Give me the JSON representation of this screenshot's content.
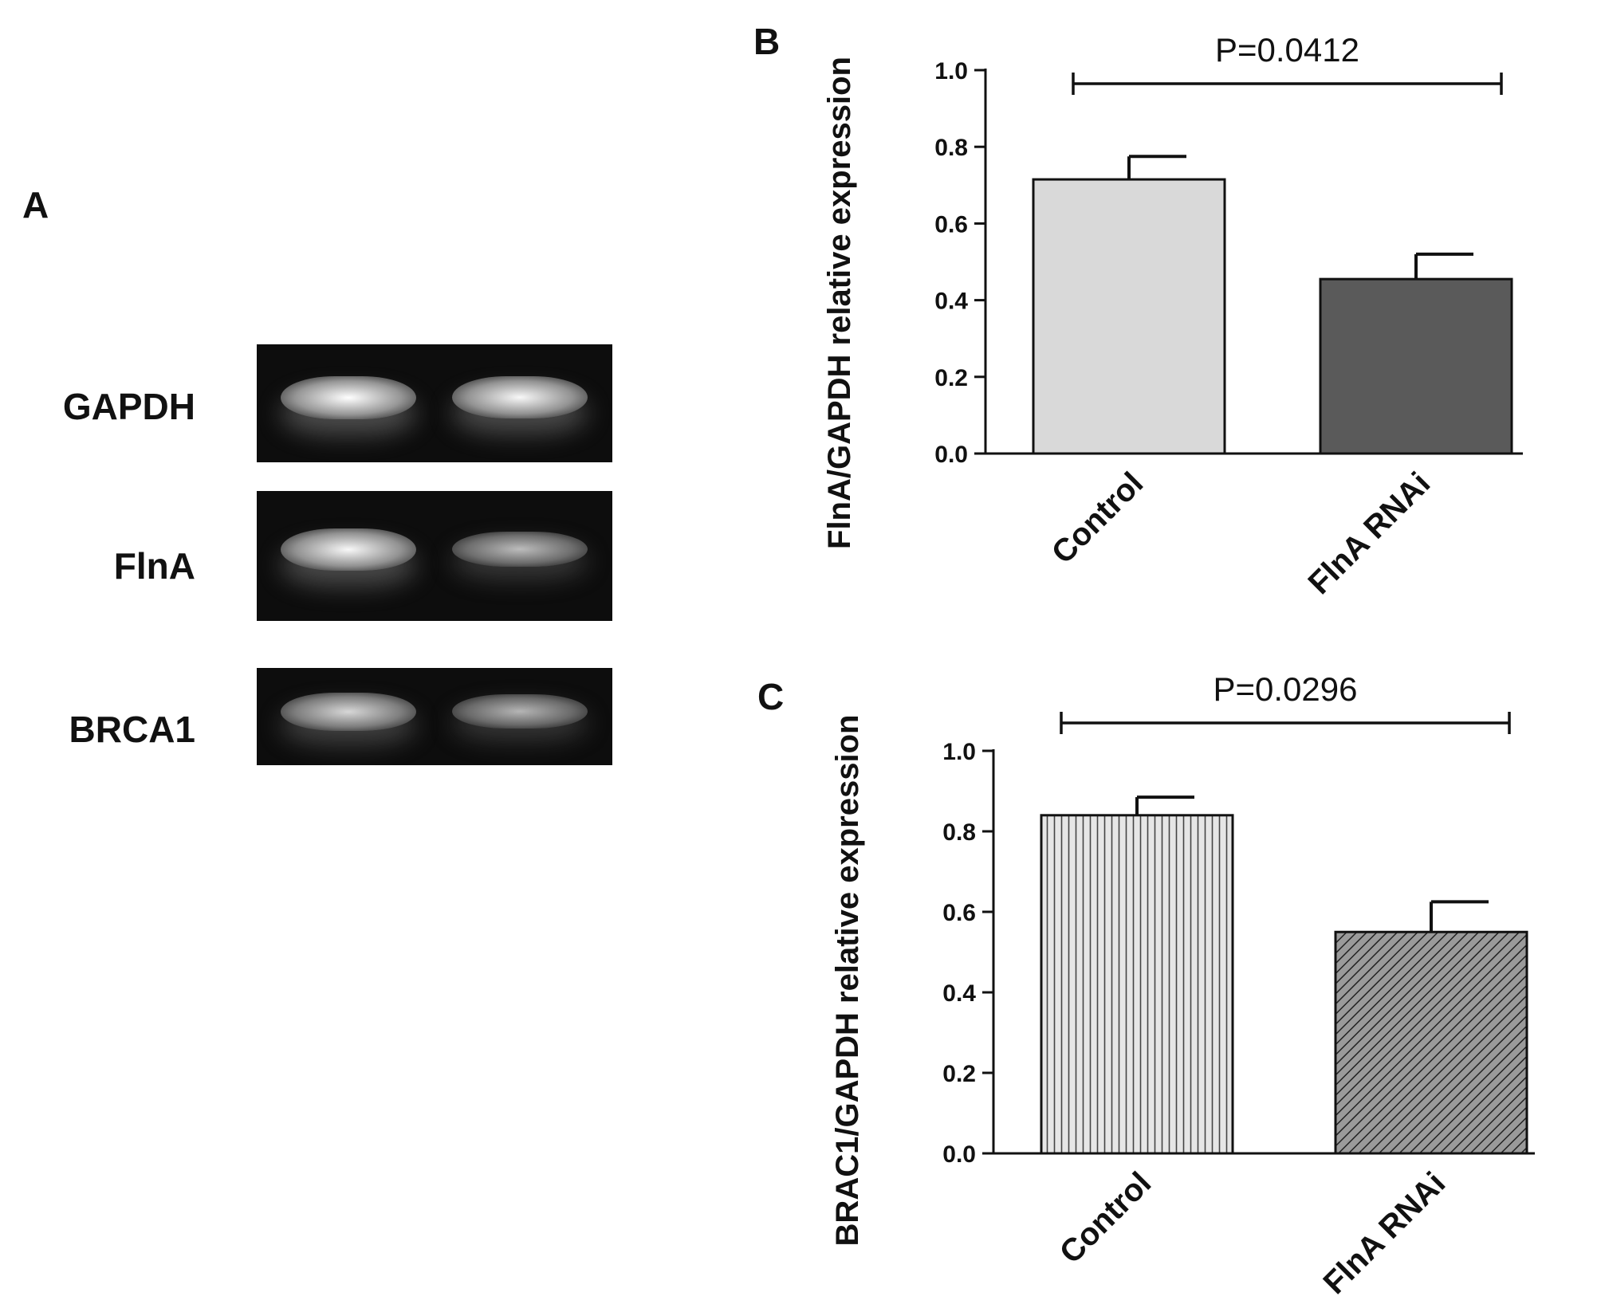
{
  "panel_a": {
    "letter": "A",
    "rows": [
      {
        "label": "GAPDH",
        "intensities": [
          1.0,
          0.95
        ]
      },
      {
        "label": "FlnA",
        "intensities": [
          0.95,
          0.5
        ]
      },
      {
        "label": "BRCA1",
        "intensities": [
          0.7,
          0.45
        ]
      }
    ]
  },
  "chart_data": [
    {
      "panel": "B",
      "type": "bar",
      "categories": [
        "Control",
        "FlnA RNAi"
      ],
      "values": [
        0.715,
        0.455
      ],
      "errors": [
        0.06,
        0.065
      ],
      "ylabel": "FlnA/GAPDH relative expression",
      "ylim": [
        0,
        1.0
      ],
      "yticks": [
        "0.0",
        "0.2",
        "0.4",
        "0.6",
        "0.8",
        "1.0"
      ],
      "annotation": "P=0.0412",
      "fills": [
        "#d9d9d9",
        "#5a5a5a"
      ],
      "pattern": [
        "solid",
        "solid"
      ]
    },
    {
      "panel": "C",
      "type": "bar",
      "categories": [
        "Control",
        "FlnA RNAi"
      ],
      "values": [
        0.84,
        0.55
      ],
      "errors": [
        0.045,
        0.075
      ],
      "ylabel": "BRAC1/GAPDH relative expression",
      "ylim": [
        0,
        1.0
      ],
      "yticks": [
        "0.0",
        "0.2",
        "0.4",
        "0.6",
        "0.8",
        "1.0"
      ],
      "annotation": "P=0.0296",
      "fills": [
        "#e6e6e6",
        "#9a9a9a"
      ],
      "pattern": [
        "vertical",
        "diagonal"
      ]
    }
  ]
}
